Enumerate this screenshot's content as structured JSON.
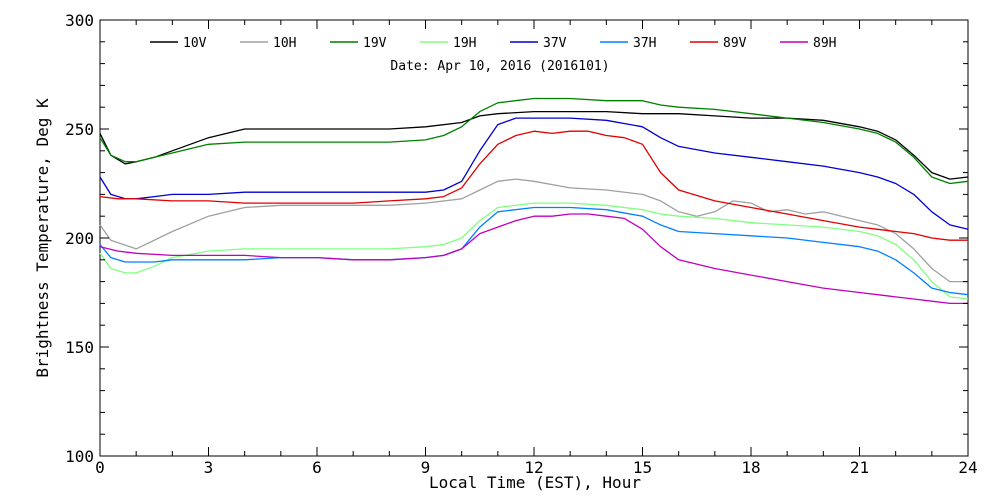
{
  "chart_data": {
    "type": "line",
    "annotation": "Date: Apr 10, 2016 (2016101)",
    "xlabel": "Local Time (EST), Hour",
    "ylabel": "Brightness Temperature, Deg K",
    "xlim": [
      0,
      24
    ],
    "ylim": [
      100,
      300
    ],
    "xticks": [
      0,
      3,
      6,
      9,
      12,
      15,
      18,
      21,
      24
    ],
    "yticks": [
      100,
      150,
      200,
      250,
      300
    ],
    "grid": false,
    "legend_position": "top",
    "series": [
      {
        "name": "10V",
        "color": "#000000",
        "x": [
          0,
          0.3,
          0.7,
          1,
          1.5,
          2,
          3,
          4,
          5,
          6,
          7,
          8,
          9,
          10,
          10.5,
          11,
          12,
          13,
          14,
          15,
          15.5,
          16,
          17,
          18,
          19,
          20,
          21,
          21.5,
          22,
          22.5,
          23,
          23.5,
          24
        ],
        "y": [
          248,
          238,
          234,
          235,
          237,
          240,
          246,
          250,
          250,
          250,
          250,
          250,
          251,
          253,
          256,
          257,
          258,
          258,
          258,
          257,
          257,
          257,
          256,
          255,
          255,
          254,
          251,
          249,
          245,
          238,
          230,
          227,
          228
        ]
      },
      {
        "name": "10H",
        "color": "#a0a0a0",
        "x": [
          0,
          0.3,
          1,
          2,
          3,
          4,
          5,
          6,
          7,
          8,
          9,
          10,
          10.5,
          11,
          11.5,
          12,
          13,
          14,
          15,
          15.5,
          16,
          16.5,
          17,
          17.5,
          18,
          18.5,
          19,
          19.5,
          20,
          21,
          21.5,
          22,
          22.5,
          23,
          23.5,
          24
        ],
        "y": [
          206,
          199,
          195,
          203,
          210,
          214,
          215,
          215,
          215,
          215,
          216,
          218,
          222,
          226,
          227,
          226,
          223,
          222,
          220,
          217,
          212,
          210,
          212,
          217,
          216,
          212,
          213,
          211,
          212,
          208,
          206,
          202,
          195,
          186,
          180,
          180
        ]
      },
      {
        "name": "19V",
        "color": "#008000",
        "x": [
          0,
          0.3,
          0.7,
          1,
          1.5,
          2,
          3,
          4,
          5,
          6,
          7,
          8,
          9,
          9.5,
          10,
          10.5,
          11,
          12,
          13,
          14,
          15,
          15.5,
          16,
          17,
          18,
          19,
          20,
          21,
          21.5,
          22,
          22.5,
          23,
          23.5,
          24
        ],
        "y": [
          246,
          238,
          235,
          235,
          237,
          239,
          243,
          244,
          244,
          244,
          244,
          244,
          245,
          247,
          251,
          258,
          262,
          264,
          264,
          263,
          263,
          261,
          260,
          259,
          257,
          255,
          253,
          250,
          248,
          244,
          237,
          228,
          225,
          226
        ]
      },
      {
        "name": "19H",
        "color": "#80ff80",
        "x": [
          0,
          0.3,
          0.7,
          1,
          1.5,
          2,
          3,
          4,
          5,
          6,
          7,
          8,
          9,
          9.5,
          10,
          10.5,
          11,
          12,
          13,
          14,
          15,
          15.5,
          16,
          17,
          18,
          19,
          20,
          21,
          21.5,
          22,
          22.5,
          23,
          23.5,
          24
        ],
        "y": [
          193,
          186,
          184,
          184,
          187,
          191,
          194,
          195,
          195,
          195,
          195,
          195,
          196,
          197,
          200,
          208,
          214,
          216,
          216,
          215,
          213,
          211,
          210,
          209,
          207,
          206,
          205,
          203,
          201,
          197,
          190,
          180,
          173,
          172
        ]
      },
      {
        "name": "37V",
        "color": "#0000d0",
        "x": [
          0,
          0.3,
          0.7,
          1,
          1.5,
          2,
          3,
          4,
          5,
          6,
          7,
          8,
          9,
          9.5,
          10,
          10.5,
          11,
          11.5,
          12,
          13,
          14,
          15,
          15.5,
          16,
          17,
          18,
          19,
          20,
          21,
          21.5,
          22,
          22.5,
          23,
          23.5,
          24
        ],
        "y": [
          228,
          220,
          218,
          218,
          219,
          220,
          220,
          221,
          221,
          221,
          221,
          221,
          221,
          222,
          226,
          240,
          252,
          255,
          255,
          255,
          254,
          251,
          246,
          242,
          239,
          237,
          235,
          233,
          230,
          228,
          225,
          220,
          212,
          206,
          204
        ]
      },
      {
        "name": "37H",
        "color": "#0080ff",
        "x": [
          0,
          0.3,
          0.7,
          1,
          1.5,
          2,
          3,
          4,
          5,
          6,
          7,
          8,
          9,
          9.5,
          10,
          10.5,
          11,
          12,
          13,
          14,
          15,
          15.5,
          16,
          17,
          18,
          19,
          20,
          21,
          21.5,
          22,
          22.5,
          23,
          23.5,
          24
        ],
        "y": [
          197,
          191,
          189,
          189,
          189,
          190,
          190,
          190,
          191,
          191,
          190,
          190,
          191,
          192,
          195,
          205,
          212,
          214,
          214,
          213,
          210,
          206,
          203,
          202,
          201,
          200,
          198,
          196,
          194,
          190,
          184,
          177,
          175,
          174
        ]
      },
      {
        "name": "89V",
        "color": "#e00000",
        "x": [
          0,
          0.5,
          1,
          2,
          3,
          4,
          5,
          6,
          7,
          8,
          9,
          9.5,
          10,
          10.5,
          11,
          11.5,
          12,
          12.5,
          13,
          13.5,
          14,
          14.5,
          15,
          15.5,
          16,
          17,
          18,
          19,
          20,
          21,
          21.5,
          22,
          22.5,
          23,
          23.5,
          24
        ],
        "y": [
          219,
          218,
          218,
          217,
          217,
          216,
          216,
          216,
          216,
          217,
          218,
          219,
          223,
          234,
          243,
          247,
          249,
          248,
          249,
          249,
          247,
          246,
          243,
          230,
          222,
          217,
          214,
          211,
          208,
          205,
          204,
          203,
          202,
          200,
          199,
          199
        ]
      },
      {
        "name": "89H",
        "color": "#c000c0",
        "x": [
          0,
          0.5,
          1,
          2,
          3,
          4,
          5,
          6,
          7,
          8,
          9,
          9.5,
          10,
          10.5,
          11,
          11.5,
          12,
          12.5,
          13,
          13.5,
          14,
          14.5,
          15,
          15.5,
          16,
          17,
          18,
          19,
          20,
          21,
          21.5,
          22,
          22.5,
          23,
          23.5,
          24
        ],
        "y": [
          196,
          194,
          193,
          192,
          192,
          192,
          191,
          191,
          190,
          190,
          191,
          192,
          195,
          202,
          205,
          208,
          210,
          210,
          211,
          211,
          210,
          209,
          204,
          196,
          190,
          186,
          183,
          180,
          177,
          175,
          174,
          173,
          172,
          171,
          170,
          170
        ]
      }
    ]
  }
}
